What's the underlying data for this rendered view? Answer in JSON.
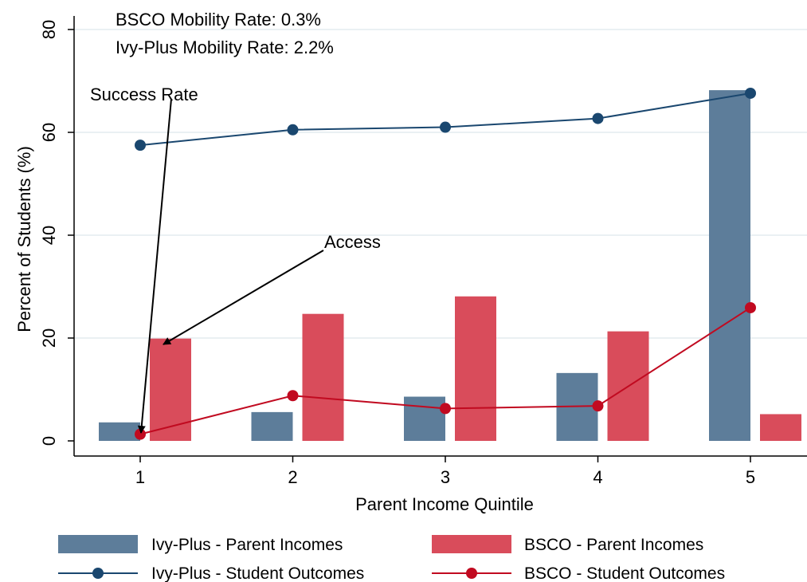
{
  "chart_data": {
    "type": "bar",
    "categories": [
      "1",
      "2",
      "3",
      "4",
      "5"
    ],
    "xlabel": "Parent Income Quintile",
    "ylabel": "Percent of Students (%)",
    "ylim": [
      0,
      80
    ],
    "yticks": [
      "0",
      "20",
      "40",
      "60",
      "80"
    ],
    "grid": true,
    "legend_position": "bottom",
    "bar_series": [
      {
        "name": "Ivy-Plus - Parent Incomes",
        "color": "#5d7d9a",
        "values": [
          3.6,
          5.6,
          8.6,
          13.2,
          68.2
        ]
      },
      {
        "name": "BSCO - Parent Incomes",
        "color": "#d94c5b",
        "values": [
          19.9,
          24.7,
          28.1,
          21.3,
          5.2
        ]
      }
    ],
    "line_series": [
      {
        "name": "Ivy-Plus - Student Outcomes",
        "color": "#1a476f",
        "values": [
          57.5,
          60.5,
          61.0,
          62.7,
          67.6
        ]
      },
      {
        "name": "BSCO - Student Outcomes",
        "color": "#c10a20",
        "values": [
          1.3,
          8.8,
          6.3,
          6.8,
          25.9
        ]
      }
    ],
    "annotations": {
      "bsco_rate": "BSCO Mobility Rate:  0.3%",
      "ivy_rate": "Ivy-Plus Mobility Rate:   2.2%",
      "success_label": "Success Rate",
      "access_label": "Access"
    }
  }
}
